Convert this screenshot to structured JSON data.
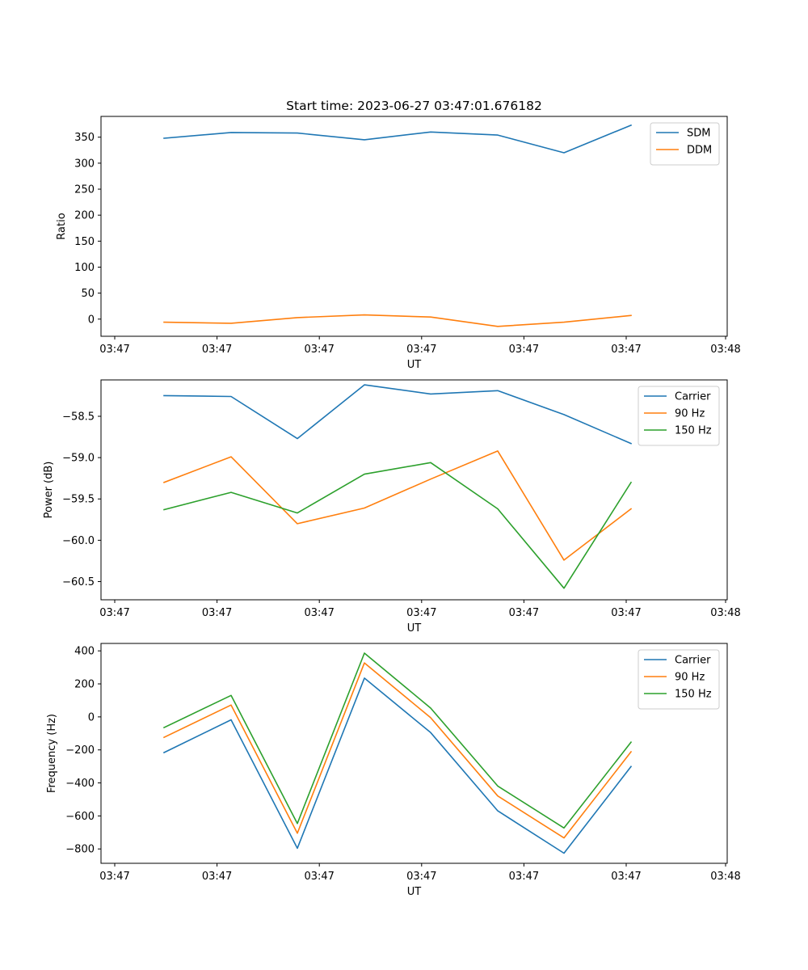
{
  "title": "Start time: 2023-06-27 03:47:01.676182",
  "colors": {
    "blue": "#1f77b4",
    "orange": "#ff7f0e",
    "green": "#2ca02c"
  },
  "x_tick_labels": [
    "03:47",
    "03:47",
    "03:47",
    "03:47",
    "03:47",
    "03:47",
    "03:48"
  ],
  "chart_data": [
    {
      "type": "line",
      "title": "Start time: 2023-06-27 03:47:01.676182",
      "xlabel": "UT",
      "ylabel": "Ratio",
      "ylim": [
        -33,
        390
      ],
      "yticks": [
        0,
        50,
        100,
        150,
        200,
        250,
        300,
        350
      ],
      "ytick_labels": [
        "0",
        "50",
        "100",
        "150",
        "200",
        "250",
        "300",
        "350"
      ],
      "legend": "top-right",
      "series": [
        {
          "name": "SDM",
          "color": "#1f77b4",
          "values": [
            348,
            359,
            358,
            345,
            360,
            354,
            320,
            373
          ]
        },
        {
          "name": "DDM",
          "color": "#ff7f0e",
          "values": [
            -6,
            -8,
            3,
            8,
            4,
            -14,
            -6,
            7
          ]
        }
      ]
    },
    {
      "type": "line",
      "title": "",
      "xlabel": "UT",
      "ylabel": "Power (dB)",
      "ylim": [
        -60.72,
        -58.06
      ],
      "yticks": [
        -60.5,
        -60.0,
        -59.5,
        -59.0,
        -58.5
      ],
      "ytick_labels": [
        "−60.5",
        "−60.0",
        "−59.5",
        "−59.0",
        "−58.5"
      ],
      "legend": "top-right",
      "series": [
        {
          "name": "Carrier",
          "color": "#1f77b4",
          "values": [
            -58.25,
            -58.26,
            -58.77,
            -58.12,
            -58.23,
            -58.19,
            -58.48,
            -58.83
          ]
        },
        {
          "name": "90 Hz",
          "color": "#ff7f0e",
          "values": [
            -59.3,
            -58.99,
            -59.8,
            -59.61,
            -59.26,
            -58.92,
            -60.24,
            -59.62
          ]
        },
        {
          "name": "150 Hz",
          "color": "#2ca02c",
          "values": [
            -59.63,
            -59.42,
            -59.67,
            -59.2,
            -59.06,
            -59.62,
            -60.58,
            -59.3
          ]
        }
      ]
    },
    {
      "type": "line",
      "title": "",
      "xlabel": "UT",
      "ylabel": "Frequency (Hz)",
      "ylim": [
        -887,
        445
      ],
      "yticks": [
        -800,
        -600,
        -400,
        -200,
        0,
        200,
        400
      ],
      "ytick_labels": [
        "−800",
        "−600",
        "−400",
        "−200",
        "0",
        "200",
        "400"
      ],
      "legend": "top-right",
      "series": [
        {
          "name": "Carrier",
          "color": "#1f77b4",
          "values": [
            -216,
            -18,
            -796,
            235,
            -95,
            -569,
            -826,
            -301
          ]
        },
        {
          "name": "90 Hz",
          "color": "#ff7f0e",
          "values": [
            -124,
            72,
            -705,
            327,
            -5,
            -479,
            -733,
            -211
          ]
        },
        {
          "name": "150 Hz",
          "color": "#2ca02c",
          "values": [
            -65,
            130,
            -646,
            386,
            53,
            -419,
            -673,
            -153
          ]
        }
      ]
    }
  ]
}
